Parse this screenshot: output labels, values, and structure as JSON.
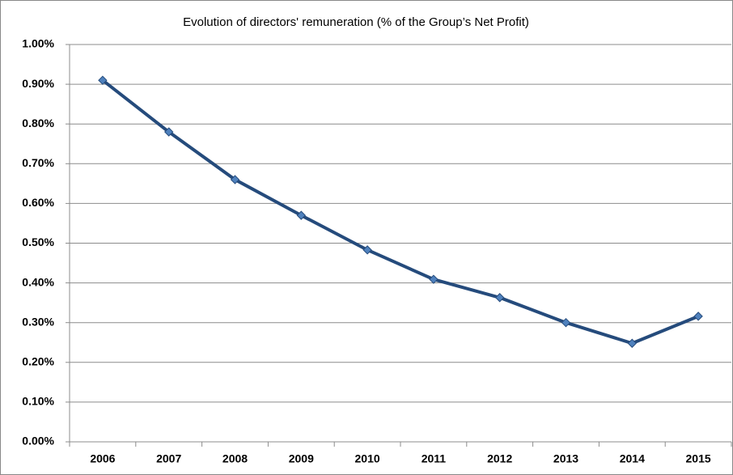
{
  "chart_data": {
    "type": "line",
    "title": "Evolution of directors' remuneration (% of the Group’s Net Profit)",
    "categories": [
      "2006",
      "2007",
      "2008",
      "2009",
      "2010",
      "2011",
      "2012",
      "2013",
      "2014",
      "2015"
    ],
    "series": [
      {
        "color": "#254b7c",
        "values": [
          0.91,
          0.78,
          0.66,
          0.57,
          0.483,
          0.409,
          0.363,
          0.3,
          0.248,
          0.316
        ]
      }
    ],
    "ylim": [
      0,
      1
    ],
    "yticks": [
      {
        "value": 0,
        "label": "0.00%"
      },
      {
        "value": 0.1,
        "label": "0.10%"
      },
      {
        "value": 0.2,
        "label": "0.20%"
      },
      {
        "value": 0.3,
        "label": "0.30%"
      },
      {
        "value": 0.4,
        "label": "0.40%"
      },
      {
        "value": 0.5,
        "label": "0.50%"
      },
      {
        "value": 0.6,
        "label": "0.60%"
      },
      {
        "value": 0.7,
        "label": "0.70%"
      },
      {
        "value": 0.8,
        "label": "0.80%"
      },
      {
        "value": 0.9,
        "label": "0.90%"
      },
      {
        "value": 1,
        "label": "1.00%"
      }
    ],
    "grid": true
  }
}
